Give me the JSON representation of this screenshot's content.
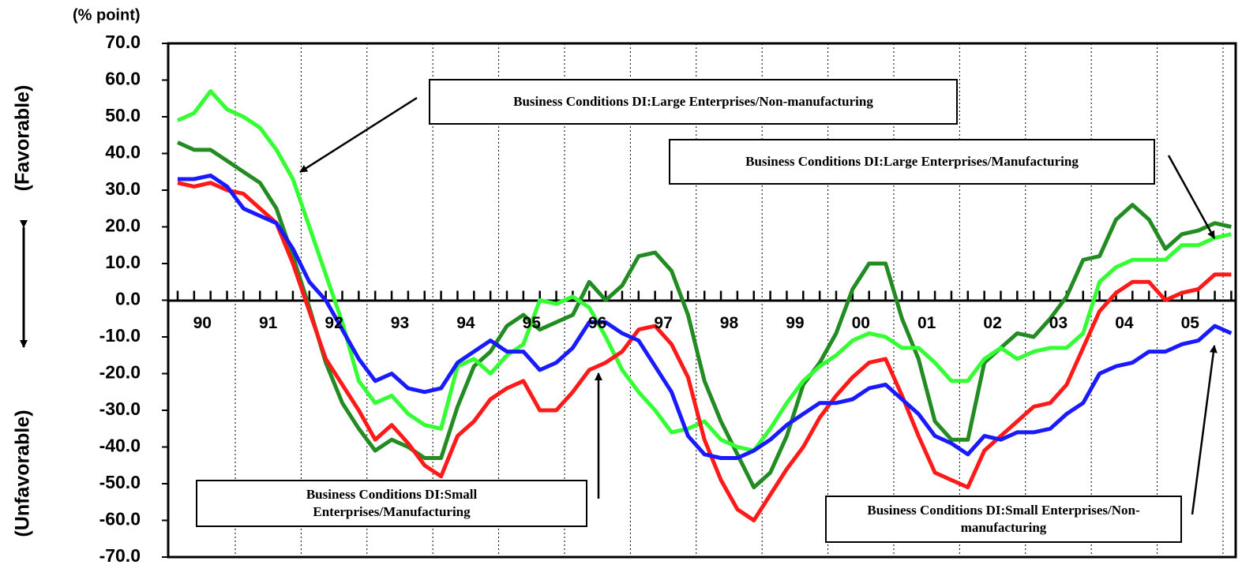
{
  "chart_data": {
    "type": "line",
    "y_unit_label": "(% point)",
    "y_label_top": "(Favorable)",
    "y_label_bottom": "(Unfavorable)",
    "categories": [
      null,
      "90",
      null,
      null,
      null,
      "91",
      null,
      null,
      null,
      "92",
      null,
      null,
      null,
      "93",
      null,
      null,
      null,
      "94",
      null,
      null,
      null,
      "95",
      null,
      null,
      null,
      "96",
      null,
      null,
      null,
      "97",
      null,
      null,
      null,
      "98",
      null,
      null,
      null,
      "99",
      null,
      null,
      null,
      "00",
      null,
      null,
      null,
      "01",
      null,
      null,
      null,
      "02",
      null,
      null,
      null,
      "03",
      null,
      null,
      null,
      "04",
      null,
      null,
      null,
      "05",
      null,
      null,
      null
    ],
    "ylim": [
      -70,
      70
    ],
    "yticks": [
      {
        "value": 70,
        "label": "70.0"
      },
      {
        "value": 60,
        "label": "60.0"
      },
      {
        "value": 50,
        "label": "50.0"
      },
      {
        "value": 40,
        "label": "40.0"
      },
      {
        "value": 30,
        "label": "30.0"
      },
      {
        "value": 20,
        "label": "20.0"
      },
      {
        "value": 10,
        "label": "10.0"
      },
      {
        "value": 0,
        "label": "0.0"
      },
      {
        "value": -10,
        "label": "-10.0"
      },
      {
        "value": -20,
        "label": "-20.0"
      },
      {
        "value": -30,
        "label": "-30.0"
      },
      {
        "value": -40,
        "label": "-40.0"
      },
      {
        "value": -50,
        "label": "-50.0"
      },
      {
        "value": -60,
        "label": "-60.0"
      },
      {
        "value": -70,
        "label": "-70.0"
      }
    ],
    "grid": false,
    "series": [
      {
        "name": "Business Conditions DI:Large Enterprises/Non-manufacturing",
        "color": "#33ff33",
        "values": [
          49,
          51,
          57,
          52,
          50,
          47,
          41,
          33,
          20,
          7,
          -6,
          -22,
          -28,
          -26,
          -31,
          -34,
          -35,
          -18,
          -16,
          -20,
          -15,
          -12,
          0,
          -1,
          1,
          -2,
          -10,
          -19,
          -25,
          -30,
          -36,
          -35,
          -33,
          -38,
          -40,
          -41,
          -35,
          -28,
          -22,
          -18,
          -15,
          -11,
          -9,
          -10,
          -13,
          -13,
          -17,
          -22,
          -22,
          -16,
          -13,
          -16,
          -14,
          -13,
          -13,
          -9,
          5,
          9,
          11,
          11,
          11,
          15,
          15,
          17,
          18
        ]
      },
      {
        "name": "Business Conditions DI:Large Enterprises/Manufacturing",
        "color": "#228b22",
        "values": [
          43,
          41,
          41,
          38,
          35,
          32,
          25,
          12,
          -2,
          -17,
          -28,
          -35,
          -41,
          -38,
          -40,
          -43,
          -43,
          -29,
          -18,
          -14,
          -7,
          -4,
          -8,
          -6,
          -4,
          5,
          0,
          4,
          12,
          13,
          8,
          -4,
          -22,
          -33,
          -42,
          -51,
          -47,
          -37,
          -23,
          -17,
          -9,
          3,
          10,
          10,
          -5,
          -16,
          -33,
          -38,
          -38,
          -17,
          -13,
          -9,
          -10,
          -5,
          1,
          11,
          12,
          22,
          26,
          22,
          14,
          18,
          19,
          21,
          20
        ]
      },
      {
        "name": "Business Conditions DI:Small Enterprises/Manufacturing",
        "color": "#ff1a1a",
        "values": [
          32,
          31,
          32,
          30,
          29,
          25,
          21,
          10,
          -3,
          -16,
          -23,
          -30,
          -38,
          -34,
          -39,
          -45,
          -48,
          -37,
          -33,
          -27,
          -24,
          -22,
          -30,
          -30,
          -25,
          -19,
          -17,
          -14,
          -8,
          -7,
          -12,
          -21,
          -38,
          -49,
          -57,
          -60,
          -53,
          -46,
          -40,
          -32,
          -26,
          -21,
          -17,
          -16,
          -26,
          -37,
          -47,
          -49,
          -51,
          -41,
          -37,
          -33,
          -29,
          -28,
          -23,
          -13,
          -3,
          2,
          5,
          5,
          0,
          2,
          3,
          7,
          7
        ]
      },
      {
        "name": "Business Conditions DI:Small Enterprises/Non-manufacturing",
        "color": "#1a1aff",
        "values": [
          33,
          33,
          34,
          31,
          25,
          23,
          21,
          14,
          5,
          0,
          -8,
          -16,
          -22,
          -20,
          -24,
          -25,
          -24,
          -17,
          -14,
          -11,
          -14,
          -14,
          -19,
          -17,
          -13,
          -6,
          -6,
          -9,
          -11,
          -18,
          -25,
          -37,
          -42,
          -43,
          -43,
          -41,
          -38,
          -34,
          -31,
          -28,
          -28,
          -27,
          -24,
          -23,
          -27,
          -31,
          -37,
          -39,
          -42,
          -37,
          -38,
          -36,
          -36,
          -35,
          -31,
          -28,
          -20,
          -18,
          -17,
          -14,
          -14,
          -12,
          -11,
          -7,
          -9
        ]
      }
    ]
  }
}
